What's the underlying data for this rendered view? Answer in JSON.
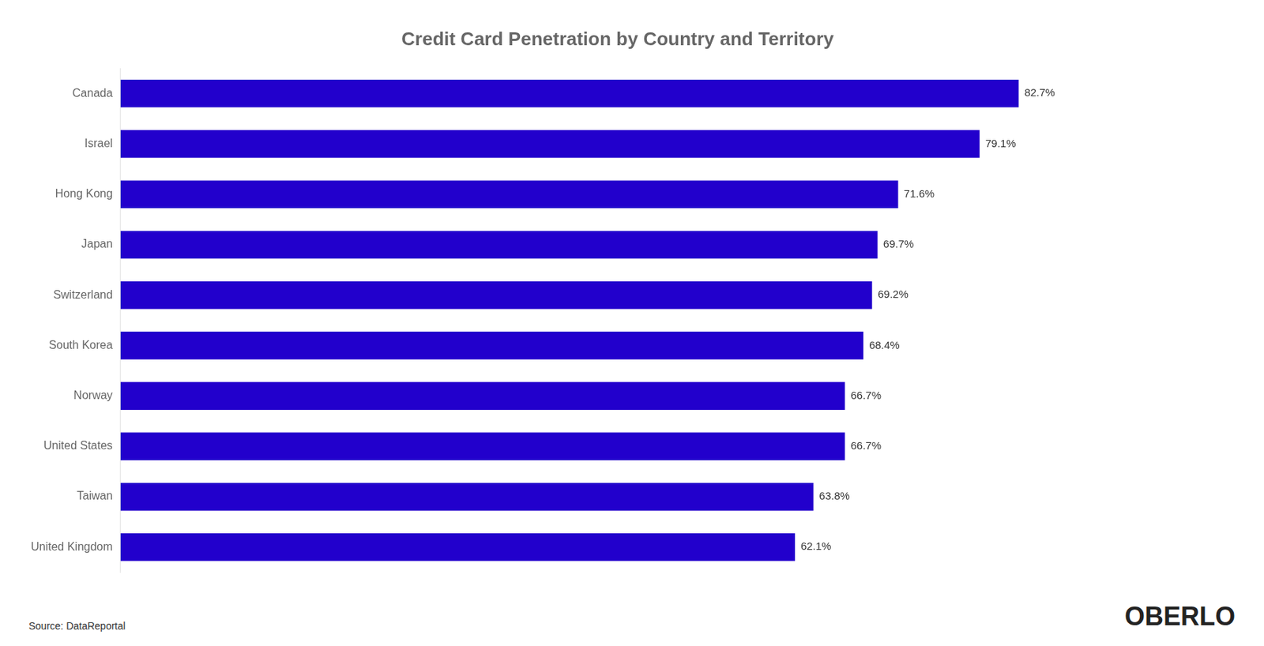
{
  "chart_data": {
    "type": "bar",
    "orientation": "horizontal",
    "title": "Credit Card Penetration by Country and Territory",
    "categories": [
      "Canada",
      "Israel",
      "Hong Kong",
      "Japan",
      "Switzerland",
      "South Korea",
      "Norway",
      "United States",
      "Taiwan",
      "United Kingdom"
    ],
    "values": [
      82.7,
      79.1,
      71.6,
      69.7,
      69.2,
      68.4,
      66.7,
      66.7,
      63.8,
      62.1
    ],
    "value_labels": [
      "82.7%",
      "79.1%",
      "71.6%",
      "69.7%",
      "69.2%",
      "68.4%",
      "66.7%",
      "66.7%",
      "63.8%",
      "62.1%"
    ],
    "color": "#2200CC",
    "xlim": [
      0,
      100
    ],
    "grid": false,
    "data_labels": true,
    "tick_labels": "y",
    "annotations": [
      "Source: DataReportal",
      "OBERLO"
    ]
  }
}
